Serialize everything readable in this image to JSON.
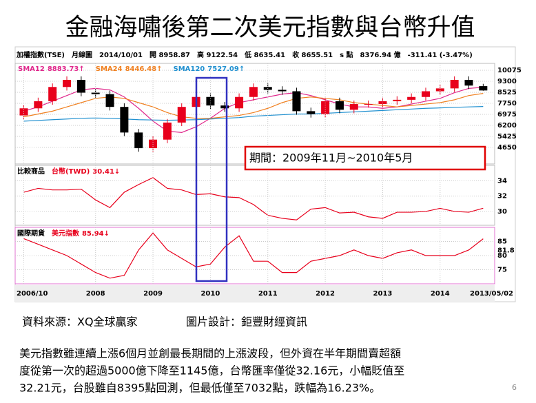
{
  "title": "金融海嘯後第二次美元指數與台幣升值",
  "chart_data": [
    {
      "type": "candlestick",
      "header": [
        "加權指數(TSE)",
        "月線圖",
        "2014/10/01",
        "開 8958.87",
        "高 9122.54",
        "低 8635.41",
        "收 8655.51",
        "s 點",
        "8376.94 億",
        "-311.41 (-3.47%)"
      ],
      "x": [
        2006.75,
        2007,
        2007.25,
        2007.5,
        2007.75,
        2008,
        2008.25,
        2008.5,
        2008.75,
        2009,
        2009.25,
        2009.5,
        2009.75,
        2010,
        2010.25,
        2010.5,
        2010.75,
        2011,
        2011.25,
        2011.5,
        2011.75,
        2012,
        2012.25,
        2012.5,
        2012.75,
        2013,
        2013.25,
        2013.5,
        2013.75,
        2014,
        2014.25,
        2014.5,
        2014.75
      ],
      "open": [
        6900,
        7400,
        7900,
        8900,
        9400,
        8500,
        8400,
        7500,
        5700,
        4600,
        5200,
        6400,
        7500,
        8200,
        7600,
        7400,
        8200,
        8900,
        8700,
        8600,
        7200,
        7000,
        7900,
        7300,
        7700,
        7700,
        7900,
        8000,
        8200,
        8600,
        8800,
        9400,
        8958.87
      ],
      "high": [
        7650,
        8150,
        9150,
        9650,
        9650,
        8750,
        8650,
        7750,
        5950,
        5450,
        6650,
        7750,
        8450,
        8450,
        7850,
        8450,
        9150,
        9150,
        8950,
        8850,
        7450,
        8150,
        8150,
        7950,
        7950,
        8150,
        8250,
        8450,
        8850,
        9050,
        9650,
        9650,
        9122.54
      ],
      "low": [
        6650,
        7150,
        7650,
        8650,
        8250,
        8150,
        7250,
        5450,
        4350,
        4350,
        4950,
        6150,
        7250,
        7350,
        7150,
        7150,
        7950,
        8450,
        8350,
        6950,
        6750,
        6750,
        7050,
        7050,
        7450,
        7450,
        7650,
        7750,
        7950,
        8350,
        8550,
        8750,
        8635.41
      ],
      "close": [
        7400,
        7900,
        8900,
        9400,
        8500,
        8400,
        7500,
        5700,
        4600,
        5200,
        6400,
        7500,
        8200,
        7600,
        7400,
        8200,
        8900,
        8700,
        8600,
        7200,
        7000,
        7900,
        7300,
        7700,
        7700,
        7900,
        8000,
        8200,
        8600,
        8800,
        9400,
        9000,
        8655.51
      ],
      "up_color": "#e8001c",
      "down_color": "#000000",
      "series": [
        {
          "name": "SMA12",
          "value_label": "8883.73↑",
          "color": "#e0288c",
          "values": [
            7200,
            7500,
            7900,
            8300,
            8700,
            8800,
            8700,
            8200,
            7400,
            6500,
            5800,
            5700,
            6100,
            6700,
            7400,
            7800,
            8000,
            8200,
            8400,
            8500,
            8300,
            8000,
            7700,
            7500,
            7500,
            7400,
            7500,
            7700,
            7900,
            8100,
            8500,
            8800,
            8884
          ]
        },
        {
          "name": "SMA24",
          "value_label": "8446.48↑",
          "color": "#f08020",
          "values": [
            6800,
            7000,
            7200,
            7500,
            7800,
            8100,
            8200,
            8100,
            7800,
            7500,
            7100,
            6800,
            6700,
            6700,
            6800,
            6900,
            7100,
            7400,
            7800,
            8100,
            8200,
            8100,
            8000,
            7800,
            7700,
            7600,
            7500,
            7600,
            7700,
            7800,
            8000,
            8300,
            8446
          ]
        },
        {
          "name": "SMA120",
          "value_label": "7527.09↑",
          "color": "#2090d0",
          "values": [
            6500,
            6550,
            6600,
            6650,
            6700,
            6720,
            6700,
            6650,
            6600,
            6580,
            6560,
            6580,
            6600,
            6650,
            6700,
            6750,
            6850,
            6900,
            6950,
            7000,
            7000,
            7050,
            7100,
            7150,
            7200,
            7250,
            7300,
            7350,
            7400,
            7430,
            7470,
            7500,
            7527
          ]
        }
      ],
      "ylim": [
        3490,
        10560
      ],
      "yticks": [
        4650,
        5425,
        6200,
        6975,
        7750,
        8525,
        9300,
        10075
      ],
      "xlim": [
        2006.6,
        2014.95
      ],
      "grid": true,
      "annotation": "期間：2009年11月~2010年5月"
    },
    {
      "type": "line",
      "category_label": "比較商品",
      "series": [
        {
          "name": "台幣(TWD)",
          "value_label": "30.41↓",
          "color": "#e8001c",
          "values": [
            32.5,
            33,
            32.8,
            32.8,
            32.9,
            31.5,
            30.5,
            32.5,
            33.5,
            34.4,
            33,
            32.8,
            32.2,
            32.3,
            31.9,
            31.8,
            30.9,
            29.5,
            29.1,
            28.9,
            30.3,
            30.5,
            29.8,
            29.9,
            29.3,
            29.1,
            29.9,
            29.9,
            30,
            30.4,
            30,
            29.9,
            30.41
          ]
        }
      ],
      "ylim": [
        28.2,
        36
      ],
      "yticks": [
        30,
        32,
        34
      ],
      "grid": true
    },
    {
      "type": "line",
      "category_label": "國際期貨",
      "series": [
        {
          "name": "美元指數",
          "value_label": "85.94↓",
          "color": "#e8001c",
          "values": [
            86,
            84,
            82,
            80,
            77,
            74,
            72,
            73,
            82,
            88,
            82,
            79,
            76,
            77,
            83,
            87,
            78,
            78,
            74,
            74,
            78,
            79,
            80,
            82,
            80,
            79,
            81,
            82,
            80,
            80,
            80,
            82,
            85.94
          ]
        }
      ],
      "ylim": [
        70,
        90
      ],
      "yticks": [
        75,
        80,
        85
      ],
      "last_value": 81.8,
      "grid": true,
      "xticks": [
        {
          "value": 2006.75,
          "label": "2006/10"
        },
        2008,
        2009,
        2010,
        2011,
        2012,
        2013,
        2014
      ],
      "end_date": "2013/05/02"
    }
  ],
  "source": "資料來源：XQ全球贏家",
  "design": "圖片設計：鉅豐財經資訊",
  "paragraph": [
    "美元指數雖連續上漲6個月並創最長期間的上漲波段，但外資在半年期間賣超額",
    "度從第一次的超過5000億下降至1145億，台幣匯率僅從32.16元，小幅貶值至",
    "32.21元，台股雖自8395點回測，但最低僅至7032點，跌幅為16.23%。"
  ],
  "page_number": "6"
}
